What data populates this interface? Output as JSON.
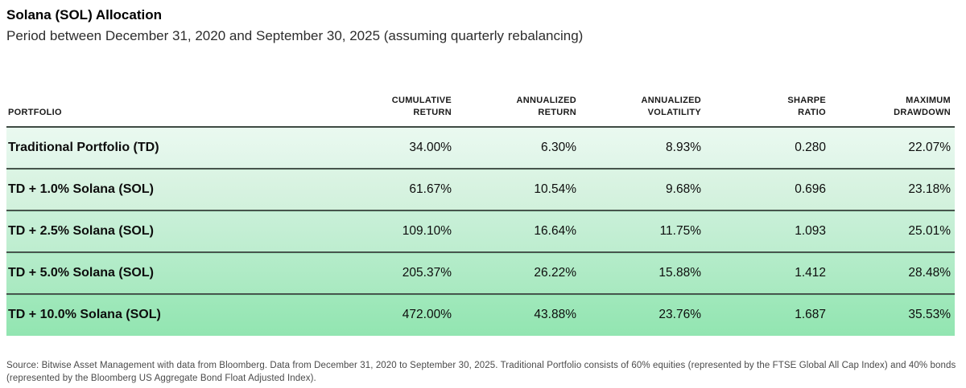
{
  "title": "Solana (SOL) Allocation",
  "subtitle": "Period between December 31, 2020 and September 30, 2025 (assuming quarterly rebalancing)",
  "colors": {
    "row_greens": [
      "#e4f7ec",
      "#d6f3e0",
      "#c3efd3",
      "#aeebc5",
      "#99e7b6"
    ],
    "divider": "#47554d",
    "header_rule": "#3e4a43"
  },
  "table": {
    "columns": {
      "portfolio": "PORTFOLIO",
      "cumulative_return": {
        "line1": "CUMULATIVE",
        "line2": "RETURN"
      },
      "annualized_return": {
        "line1": "ANNUALIZED",
        "line2": "RETURN"
      },
      "annualized_volatility": {
        "line1": "ANNUALIZED",
        "line2": "VOLATILITY"
      },
      "sharpe_ratio": {
        "line1": "SHARPE",
        "line2": "RATIO"
      },
      "maximum_drawdown": {
        "line1": "MAXIMUM",
        "line2": "DRAWDOWN"
      }
    },
    "rows": [
      {
        "portfolio": "Traditional Portfolio (TD)",
        "cumulative_return": "34.00%",
        "annualized_return": "6.30%",
        "annualized_volatility": "8.93%",
        "sharpe_ratio": "0.280",
        "maximum_drawdown": "22.07%"
      },
      {
        "portfolio": "TD + 1.0% Solana (SOL)",
        "cumulative_return": "61.67%",
        "annualized_return": "10.54%",
        "annualized_volatility": "9.68%",
        "sharpe_ratio": "0.696",
        "maximum_drawdown": "23.18%"
      },
      {
        "portfolio": "TD + 2.5% Solana (SOL)",
        "cumulative_return": "109.10%",
        "annualized_return": "16.64%",
        "annualized_volatility": "11.75%",
        "sharpe_ratio": "1.093",
        "maximum_drawdown": "25.01%"
      },
      {
        "portfolio": "TD + 5.0% Solana (SOL)",
        "cumulative_return": "205.37%",
        "annualized_return": "26.22%",
        "annualized_volatility": "15.88%",
        "sharpe_ratio": "1.412",
        "maximum_drawdown": "28.48%"
      },
      {
        "portfolio": "TD + 10.0% Solana (SOL)",
        "cumulative_return": "472.00%",
        "annualized_return": "43.88%",
        "annualized_volatility": "23.76%",
        "sharpe_ratio": "1.687",
        "maximum_drawdown": "35.53%"
      }
    ]
  },
  "footnote": "Source: Bitwise Asset Management with data from Bloomberg. Data from December 31, 2020 to September 30, 2025. Traditional Portfolio consists of 60% equities (represented by the FTSE Global All Cap Index) and 40% bonds (represented by the Bloomberg US Aggregate Bond Float Adjusted Index).",
  "chart_data": {
    "type": "table",
    "title": "Solana (SOL) Allocation",
    "subtitle": "Period between December 31, 2020 and September 30, 2025 (assuming quarterly rebalancing)",
    "columns": [
      "Portfolio",
      "Cumulative Return",
      "Annualized Return",
      "Annualized Volatility",
      "Sharpe Ratio",
      "Maximum Drawdown"
    ],
    "rows": [
      [
        "Traditional Portfolio (TD)",
        "34.00%",
        "6.30%",
        "8.93%",
        "0.280",
        "22.07%"
      ],
      [
        "TD + 1.0% Solana (SOL)",
        "61.67%",
        "10.54%",
        "9.68%",
        "0.696",
        "23.18%"
      ],
      [
        "TD + 2.5% Solana (SOL)",
        "109.10%",
        "16.64%",
        "11.75%",
        "1.093",
        "25.01%"
      ],
      [
        "TD + 5.0% Solana (SOL)",
        "205.37%",
        "26.22%",
        "15.88%",
        "1.412",
        "28.48%"
      ],
      [
        "TD + 10.0% Solana (SOL)",
        "472.00%",
        "43.88%",
        "23.76%",
        "1.687",
        "35.53%"
      ]
    ],
    "notes": "Row shading deepens from light to dark green as Solana allocation increases.",
    "source": "Source: Bitwise Asset Management with data from Bloomberg."
  }
}
